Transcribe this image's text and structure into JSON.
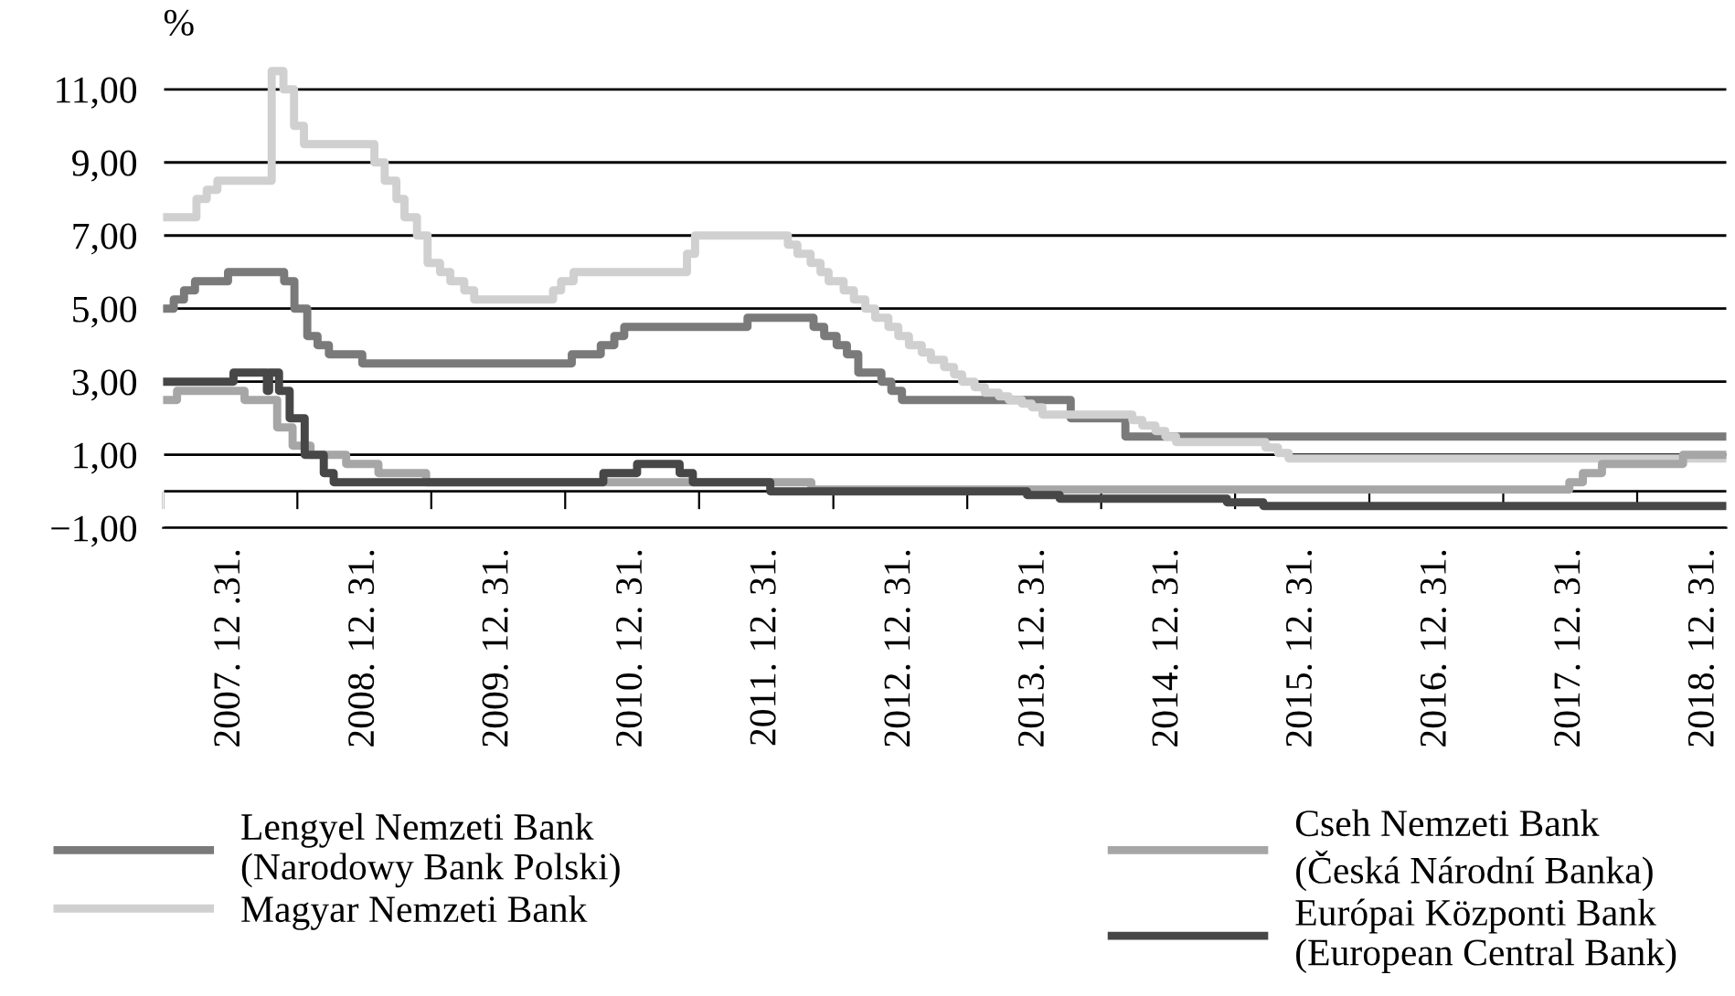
{
  "chart_data": {
    "type": "step",
    "ylabel": "%",
    "legend": "bottom",
    "grid": "y",
    "xlim": [
      "2007-07-01",
      "2019-03-01"
    ],
    "xticks": [
      {
        "value": "2007-07-01",
        "label": null
      },
      {
        "value": "2008-07-01",
        "label": null
      },
      {
        "value": "2009-07-01",
        "label": null
      },
      {
        "value": "2010-07-01",
        "label": null
      },
      {
        "value": "2011-07-01",
        "label": null
      },
      {
        "value": "2012-07-01",
        "label": null
      },
      {
        "value": "2013-07-01",
        "label": null
      },
      {
        "value": "2014-07-01",
        "label": null
      },
      {
        "value": "2015-07-01",
        "label": null
      },
      {
        "value": "2016-07-01",
        "label": null
      },
      {
        "value": "2017-07-01",
        "label": null
      },
      {
        "value": "2018-07-01",
        "label": null
      },
      {
        "value": "2007-12-31",
        "label": "2007. 12 .31."
      },
      {
        "value": "2008-12-31",
        "label": "2008. 12. 31."
      },
      {
        "value": "2009-12-31",
        "label": "2009. 12. 31."
      },
      {
        "value": "2010-12-31",
        "label": "2010. 12. 31."
      },
      {
        "value": "2011-12-31",
        "label": "2011. 12. 31."
      },
      {
        "value": "2012-12-31",
        "label": "2012. 12. 31."
      },
      {
        "value": "2013-12-31",
        "label": "2013. 12. 31."
      },
      {
        "value": "2014-12-31",
        "label": "2014. 12. 31."
      },
      {
        "value": "2015-12-31",
        "label": "2015. 12. 31."
      },
      {
        "value": "2016-12-31",
        "label": "2016. 12. 31."
      },
      {
        "value": "2017-12-31",
        "label": "2017. 12. 31."
      },
      {
        "value": "2018-12-31",
        "label": "2018. 12. 31."
      }
    ],
    "ylim": [
      -1,
      12
    ],
    "yticks": [
      {
        "value": -1,
        "label": "−1,00"
      },
      {
        "value": 1,
        "label": "1,00"
      },
      {
        "value": 3,
        "label": "3,00"
      },
      {
        "value": 5,
        "label": "5,00"
      },
      {
        "value": 7,
        "label": "7,00"
      },
      {
        "value": 9,
        "label": "9,00"
      },
      {
        "value": 11,
        "label": "11,00"
      }
    ],
    "ref_lines": [
      {
        "axis": "y",
        "value": 0,
        "label": null,
        "color": "#000000"
      }
    ],
    "series": [
      {
        "name": "Lengyel Nemzeti Bank\n(Narodowy Bank Polski)",
        "color": "#7a7a7a",
        "x": [
          "2007-07-01",
          "2007-07-30",
          "2007-08-27",
          "2007-09-26",
          "2007-12-25",
          "2008-05-26",
          "2008-06-23",
          "2008-07-28",
          "2008-08-25",
          "2008-09-25",
          "2008-12-25",
          "2010-07-19",
          "2010-10-06",
          "2010-11-12",
          "2010-12-09",
          "2011-11-10",
          "2012-05-08",
          "2012-06-06",
          "2012-07-10",
          "2012-08-07",
          "2012-09-07",
          "2012-11-09",
          "2012-12-06",
          "2013-01-04",
          "2014-04-09",
          "2014-09-05",
          "2019-03-01"
        ],
        "values": [
          5.0,
          5.25,
          5.5,
          5.75,
          6.0,
          5.75,
          5.0,
          4.25,
          4.0,
          3.75,
          3.5,
          3.75,
          4.0,
          4.25,
          4.5,
          4.75,
          4.5,
          4.25,
          4.0,
          3.75,
          3.25,
          3.0,
          2.75,
          2.5,
          2.0,
          1.5,
          1.5
        ]
      },
      {
        "name": "Magyar Nemzeti Bank",
        "color": "#d0d0d0",
        "x": [
          "2007-07-01",
          "2007-09-30",
          "2007-10-28",
          "2007-11-26",
          "2008-04-22",
          "2008-05-24",
          "2008-06-22",
          "2008-07-19",
          "2009-01-27",
          "2009-02-24",
          "2009-03-28",
          "2009-04-19",
          "2009-05-23",
          "2009-06-21",
          "2009-07-25",
          "2009-08-22",
          "2009-09-29",
          "2009-10-26",
          "2010-05-29",
          "2010-06-20",
          "2010-07-24",
          "2011-05-29",
          "2011-06-20",
          "2012-02-28",
          "2012-03-25",
          "2012-04-30",
          "2012-05-27",
          "2012-06-18",
          "2012-07-29",
          "2012-08-26",
          "2012-09-26",
          "2012-10-23",
          "2012-11-28",
          "2012-12-25",
          "2013-01-23",
          "2013-02-27",
          "2013-03-24",
          "2013-04-29",
          "2013-05-26",
          "2013-06-17",
          "2013-07-21",
          "2013-08-18",
          "2013-09-25",
          "2013-10-22",
          "2013-11-27",
          "2013-12-24",
          "2014-01-22",
          "2014-09-24",
          "2014-10-21",
          "2014-11-26",
          "2014-12-23",
          "2015-01-21",
          "2015-09-22",
          "2015-10-26",
          "2015-11-24",
          "2019-03-01"
        ],
        "values": [
          7.5,
          8.0,
          8.25,
          8.5,
          11.5,
          11.0,
          10.0,
          9.5,
          9.0,
          8.5,
          8.0,
          7.5,
          7.0,
          6.25,
          6.0,
          5.75,
          5.5,
          5.25,
          5.5,
          5.75,
          6.0,
          6.5,
          7.0,
          6.75,
          6.5,
          6.25,
          6.0,
          5.75,
          5.5,
          5.25,
          5.0,
          4.75,
          4.5,
          4.25,
          4.0,
          3.8,
          3.6,
          3.4,
          3.2,
          3.0,
          2.85,
          2.7,
          2.6,
          2.5,
          2.4,
          2.3,
          2.1,
          1.95,
          1.8,
          1.65,
          1.5,
          1.35,
          1.2,
          1.05,
          0.9,
          0.9
        ]
      },
      {
        "name": "Cseh Nemzeti Bank\n(Česká Národní Banka)",
        "color": "#a6a6a6",
        "x": [
          "2007-07-01",
          "2007-08-08",
          "2008-02-08",
          "2008-05-07",
          "2008-06-18",
          "2008-08-06",
          "2008-11-11",
          "2009-02-07",
          "2009-06-17",
          "2012-05-02",
          "2017-12-28",
          "2018-02-03",
          "2018-03-27",
          "2018-11-03",
          "2019-03-01"
        ],
        "values": [
          2.5,
          2.75,
          2.5,
          1.75,
          1.25,
          1.0,
          0.75,
          0.5,
          0.25,
          0.05,
          0.25,
          0.5,
          0.75,
          1.0,
          1.0
        ]
      },
      {
        "name": "Európai Központi Bank\n(European Central Bank)",
        "color": "#474747",
        "x": [
          "2007-07-01",
          "2008-01-09",
          "2008-04-09",
          "2008-04-15",
          "2008-05-12",
          "2008-06-10",
          "2008-07-21",
          "2008-09-11",
          "2008-10-08",
          "2010-10-13",
          "2011-01-13",
          "2011-05-09",
          "2011-06-14",
          "2012-01-11",
          "2013-12-11",
          "2014-03-10",
          "2015-06-09",
          "2015-09-16",
          "2019-03-01"
        ],
        "values": [
          3.0,
          3.25,
          2.75,
          3.25,
          2.75,
          2.0,
          1.0,
          0.5,
          0.25,
          0.5,
          0.75,
          0.5,
          0.25,
          0.0,
          -0.1,
          -0.2,
          -0.3,
          -0.4,
          -0.4
        ]
      }
    ]
  }
}
